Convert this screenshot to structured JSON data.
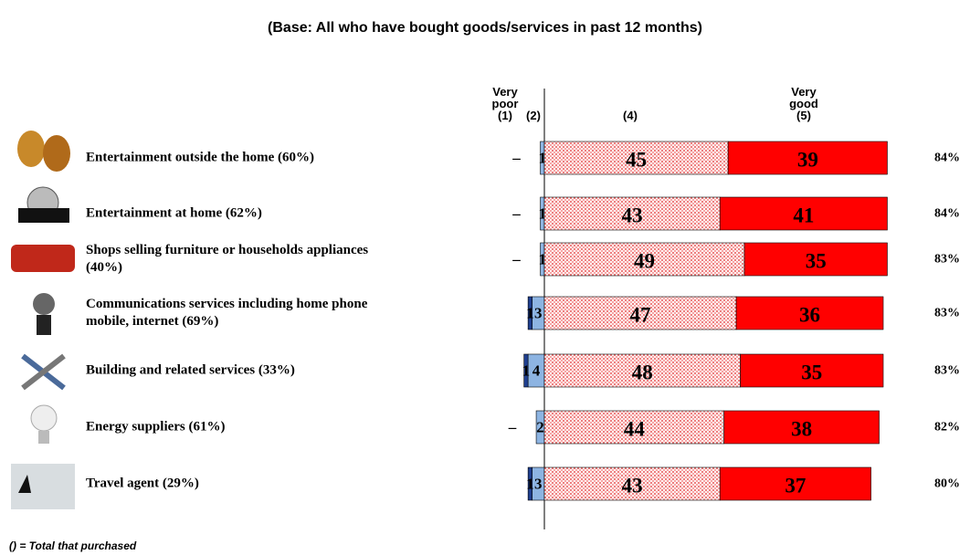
{
  "chart_data": {
    "type": "diverging_stacked_bar",
    "title": "(Base: All who have bought goods/services in past 12 months)",
    "footnote": "() = Total that purchased",
    "categories": [
      "Entertainment outside the home (60%)",
      "Entertainment at home (62%)",
      "Shops selling furniture or households appliances (40%)",
      "Communications services including home phone mobile, internet (69%)",
      "Building and related services (33%)",
      "Energy suppliers (61%)",
      "Travel agent (29%)"
    ],
    "series": [
      {
        "name": "Very poor (1)",
        "color": "#1f3f8f",
        "values": [
          0,
          0,
          0,
          1,
          1,
          0,
          1
        ],
        "value_labels": [
          "–",
          "–",
          "–",
          "1",
          "1",
          "–",
          "1"
        ]
      },
      {
        "name": "(2)",
        "color": "#8db4e2",
        "values": [
          1,
          1,
          1,
          3,
          4,
          2,
          3
        ]
      },
      {
        "name": "(4)",
        "color": "#ff8080",
        "values": [
          45,
          43,
          49,
          47,
          48,
          44,
          43
        ]
      },
      {
        "name": "Very good (5)",
        "color": "#ff0000",
        "values": [
          39,
          41,
          35,
          36,
          35,
          38,
          37
        ]
      }
    ],
    "totals": {
      "values": [
        84,
        84,
        83,
        83,
        83,
        82,
        80
      ],
      "value_labels": [
        "84%",
        "84%",
        "83%",
        "83%",
        "83%",
        "82%",
        "80%"
      ]
    }
  }
}
